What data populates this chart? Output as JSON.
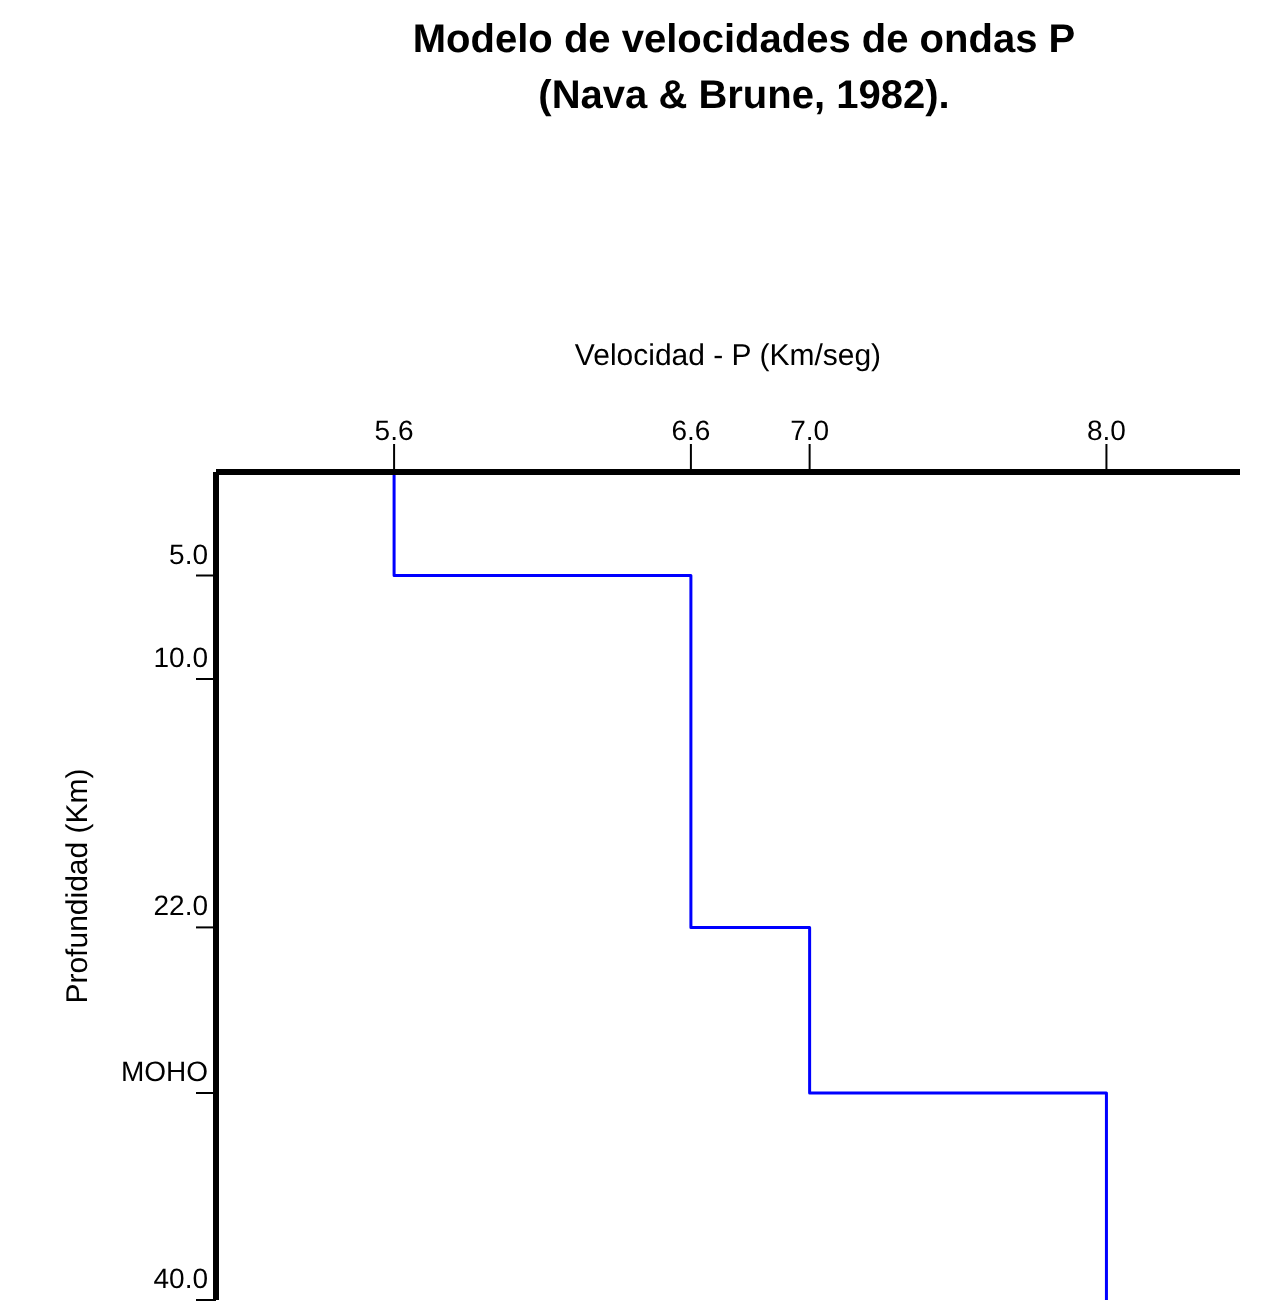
{
  "chart_data": {
    "type": "line",
    "title": "Modelo de velocidades de ondas P",
    "subtitle": "(Nava & Brune, 1982).",
    "xlabel": "Velocidad - P (Km/seg)",
    "ylabel": "Profundidad (Km)",
    "series": [
      {
        "color": "#0000ff",
        "x": [
          5.6,
          5.6,
          6.6,
          6.6,
          7.0,
          7.0,
          8.0,
          8.0
        ],
        "values": [
          0,
          5,
          5,
          22,
          22,
          30,
          30,
          40
        ]
      }
    ],
    "xlim": [
      5.0,
      8.45
    ],
    "xticks": [
      5.6,
      6.6,
      {
        "value": 7.0,
        "label": "7.0"
      },
      {
        "value": 8.0,
        "label": "8.0"
      }
    ],
    "ylim": [
      40,
      0
    ],
    "yticks": [
      {
        "value": 5,
        "label": "5.0"
      },
      {
        "value": 10,
        "label": "10.0"
      },
      {
        "value": 22,
        "label": "22.0"
      },
      {
        "value": 30,
        "label": "MOHO"
      },
      {
        "value": 40,
        "label": "40.0"
      }
    ],
    "grid": false,
    "legend": false,
    "marker": "none",
    "line_style": "solid"
  }
}
